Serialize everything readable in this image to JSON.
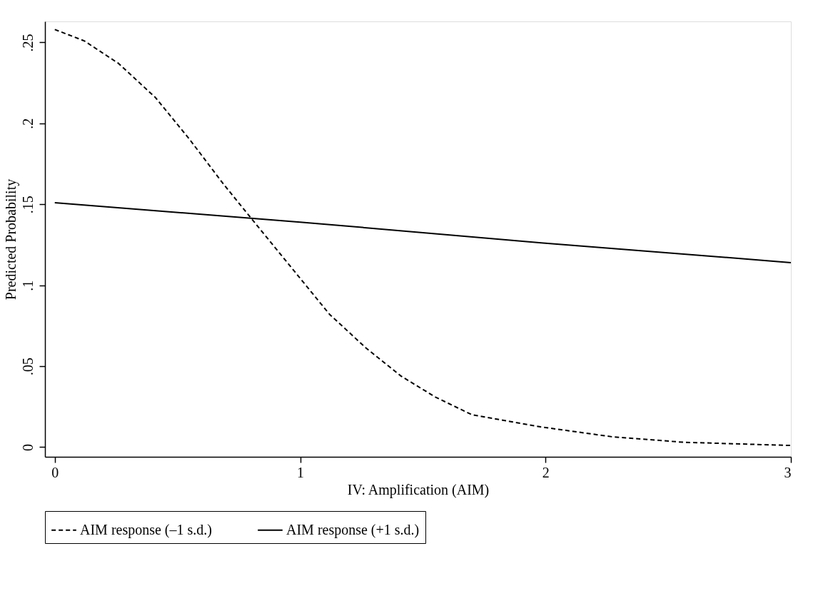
{
  "chart_data": {
    "type": "line",
    "xlabel": "IV: Amplification (AIM)",
    "ylabel": "Predicted Probability",
    "xlim": [
      -0.04,
      3.0
    ],
    "ylim": [
      -0.006,
      0.263
    ],
    "xticks": [
      0,
      1,
      2,
      3
    ],
    "yticks": [
      {
        "value": 0,
        "label": "0"
      },
      {
        "value": 0.05,
        "label": ".05"
      },
      {
        "value": 0.1,
        "label": ".1"
      },
      {
        "value": 0.15,
        "label": ".15"
      },
      {
        "value": 0.2,
        "label": ".2"
      },
      {
        "value": 0.25,
        "label": ".25"
      }
    ],
    "grid": false,
    "legend": "bottom",
    "marker": "none",
    "series": [
      {
        "name": "AIM response (–1 s.d.)",
        "color": "#000000",
        "line_style": "dashed",
        "x": [
          0,
          0.12,
          0.26,
          0.41,
          0.55,
          0.69,
          0.84,
          0.98,
          1.12,
          1.27,
          1.41,
          1.55,
          1.7,
          1.98,
          2.27,
          2.56,
          3.0
        ],
        "values": [
          0.258,
          0.251,
          0.237,
          0.216,
          0.19,
          0.162,
          0.134,
          0.108,
          0.082,
          0.061,
          0.044,
          0.031,
          0.02,
          0.0125,
          0.0064,
          0.003,
          0.001
        ]
      },
      {
        "name": "AIM response (+1 s.d.)",
        "color": "#000000",
        "line_style": "solid",
        "x": [
          0,
          1,
          2,
          3
        ],
        "values": [
          0.151,
          0.139,
          0.126,
          0.114
        ]
      }
    ]
  }
}
